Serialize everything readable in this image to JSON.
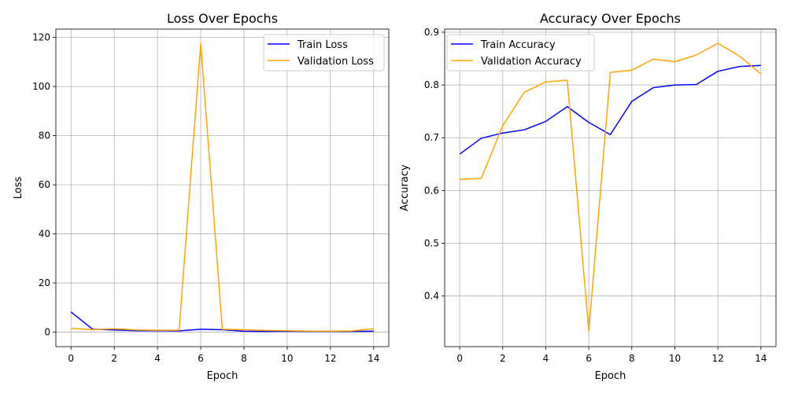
{
  "chart_data": [
    {
      "type": "line",
      "title": "Loss Over Epochs",
      "xlabel": "Epoch",
      "ylabel": "Loss",
      "x": [
        0,
        1,
        2,
        3,
        4,
        5,
        6,
        7,
        8,
        9,
        10,
        11,
        12,
        13,
        14
      ],
      "xlim": [
        -0.7,
        14.7
      ],
      "ylim": [
        -5.9,
        123.4
      ],
      "xticks": [
        0,
        2,
        4,
        6,
        8,
        10,
        12,
        14
      ],
      "yticks": [
        0,
        20,
        40,
        60,
        80,
        100,
        120
      ],
      "grid": true,
      "legend_position": "top-right",
      "series": [
        {
          "name": "Train Loss",
          "color": "#0000ff",
          "values": [
            8.2,
            1.2,
            0.9,
            0.6,
            0.6,
            0.5,
            1.2,
            1.0,
            0.4,
            0.3,
            0.4,
            0.3,
            0.3,
            0.3,
            0.4
          ]
        },
        {
          "name": "Validation Loss",
          "color": "#ffa500",
          "values": [
            1.6,
            1.0,
            1.4,
            0.9,
            0.8,
            0.8,
            117.5,
            1.2,
            1.0,
            0.7,
            0.6,
            0.4,
            0.4,
            0.5,
            1.4
          ]
        }
      ]
    },
    {
      "type": "line",
      "title": "Accuracy Over Epochs",
      "xlabel": "Epoch",
      "ylabel": "Accuracy",
      "x": [
        0,
        1,
        2,
        3,
        4,
        5,
        6,
        7,
        8,
        9,
        10,
        11,
        12,
        13,
        14
      ],
      "xlim": [
        -0.7,
        14.7
      ],
      "ylim": [
        0.304,
        0.906
      ],
      "xticks": [
        0,
        2,
        4,
        6,
        8,
        10,
        12,
        14
      ],
      "yticks": [
        0.4,
        0.5,
        0.6,
        0.7,
        0.8,
        0.9
      ],
      "grid": true,
      "legend_position": "top-left",
      "series": [
        {
          "name": "Train Accuracy",
          "color": "#0000ff",
          "values": [
            0.669,
            0.699,
            0.709,
            0.715,
            0.731,
            0.759,
            0.729,
            0.706,
            0.769,
            0.795,
            0.8,
            0.801,
            0.826,
            0.835,
            0.837
          ]
        },
        {
          "name": "Validation Accuracy",
          "color": "#ffa500",
          "values": [
            0.621,
            0.623,
            0.723,
            0.786,
            0.806,
            0.809,
            0.333,
            0.824,
            0.828,
            0.849,
            0.844,
            0.857,
            0.879,
            0.855,
            0.821
          ]
        }
      ]
    }
  ]
}
